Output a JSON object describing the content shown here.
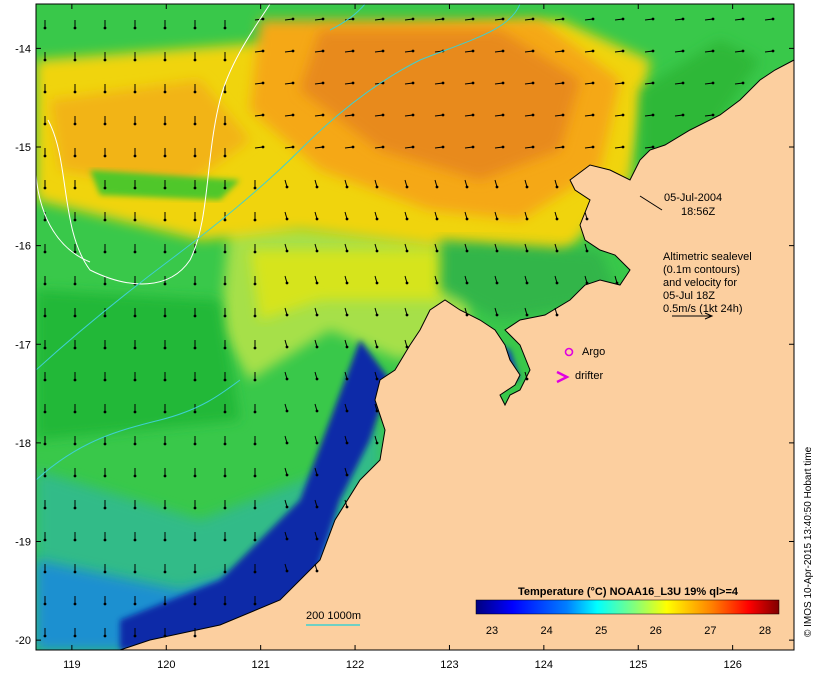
{
  "map": {
    "extent": {
      "lon": [
        118.62,
        126.65
      ],
      "lat": [
        -20.1,
        -13.55
      ]
    },
    "lon_ticks": [
      "119",
      "120",
      "121",
      "122",
      "123",
      "124",
      "125",
      "126"
    ],
    "lat_ticks": [
      "-14",
      "-15",
      "-16",
      "-17",
      "-18",
      "-19",
      "-20"
    ],
    "land_color": "#fccf9f",
    "date_label": "05-Jul-2004",
    "time_label": "18:56Z",
    "altimetry_text": [
      "Altimetric sealevel",
      "(0.1m contours)",
      "and velocity for",
      "05-Jul 18Z",
      "0.5m/s (1kt 24h)"
    ],
    "argo_label": "Argo",
    "argo_color": "#e000e0",
    "drifter_label": "drifter",
    "drifter_color": "#e000e0",
    "bathy_label": "200  1000m",
    "bathy_color": "#3fd0d0",
    "credit": "© IMOS 10-Apr-2015 13:40:50 Hobart time"
  },
  "colorbar": {
    "title": "Temperature (°C) NOAA16_L3U 19% ql>=4",
    "ticks": [
      "23",
      "24",
      "25",
      "26",
      "27",
      "28"
    ],
    "colors": [
      "#00007f",
      "#0000ff",
      "#007fff",
      "#00ffff",
      "#7fff7f",
      "#ffff00",
      "#ff7f00",
      "#ff0000",
      "#7f0000"
    ]
  }
}
